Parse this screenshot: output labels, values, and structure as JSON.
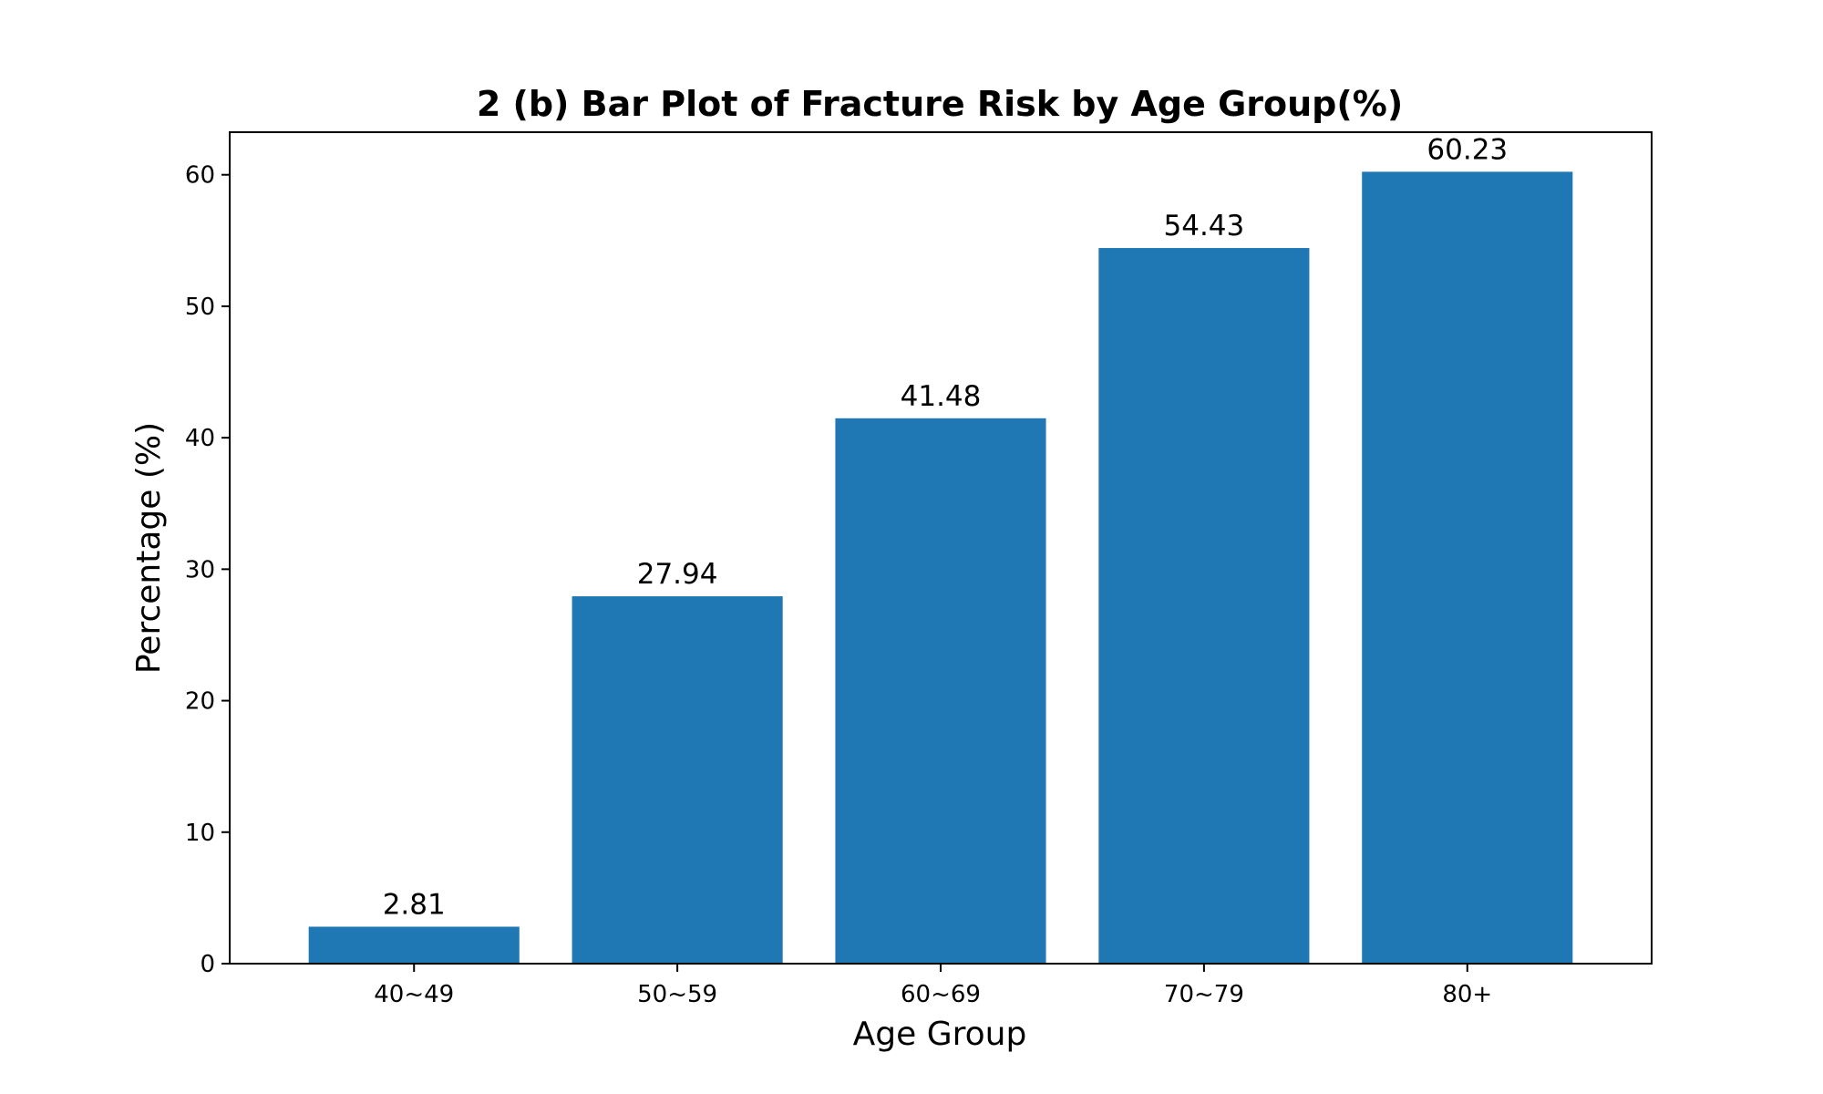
{
  "chart_data": {
    "type": "bar",
    "title": "2 (b) Bar Plot of Fracture Risk by Age Group(%)",
    "xlabel": "Age Group",
    "ylabel": "Percentage (%)",
    "categories": [
      "40~49",
      "50~59",
      "60~69",
      "70~79",
      "80+"
    ],
    "values": [
      2.81,
      27.94,
      41.48,
      54.43,
      60.23
    ],
    "data_labels": [
      "2.81",
      "27.94",
      "41.48",
      "54.43",
      "60.23"
    ],
    "ylim": [
      0,
      63.24
    ],
    "yticks": [
      0,
      10,
      20,
      30,
      40,
      50,
      60
    ],
    "grid": false,
    "legend": "none",
    "bar_color": "#1f77b4"
  }
}
